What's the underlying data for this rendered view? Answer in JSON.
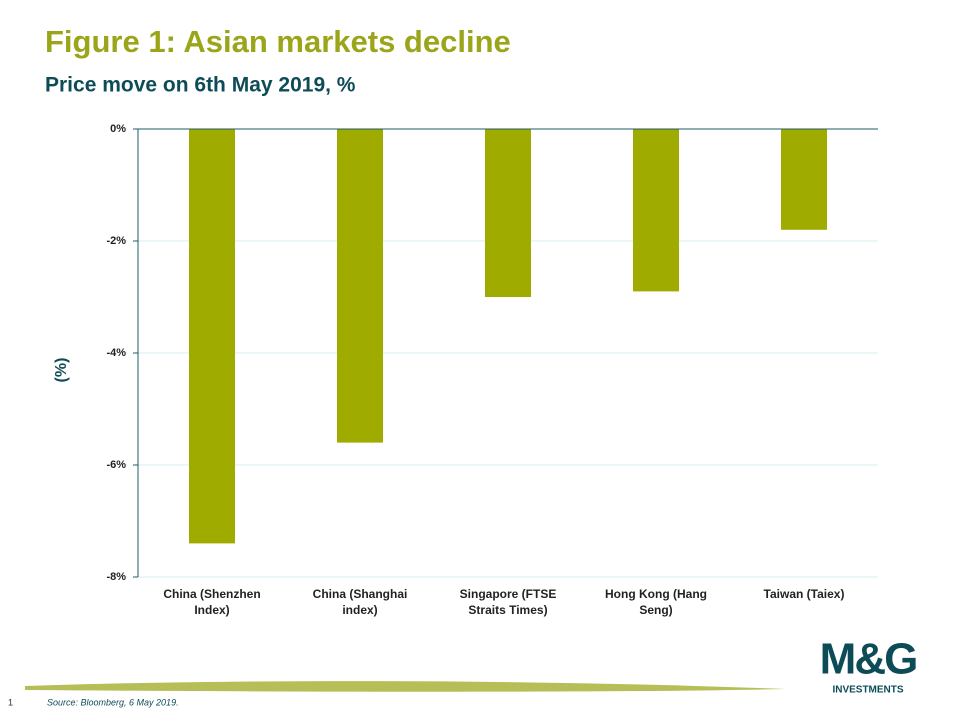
{
  "chart_data": {
    "type": "bar",
    "title": "Figure 1: Asian markets decline",
    "subtitle": "Price move on 6th May 2019, %",
    "y_label": "(%)",
    "categories": [
      "China (Shenzhen Index)",
      "China (Shanghai index)",
      "Singapore (FTSE Straits Times)",
      "Hong Kong (Hang Seng)",
      "Taiwan (Taiex)"
    ],
    "values": [
      -7.4,
      -5.6,
      -3.0,
      -2.9,
      -1.8
    ],
    "color": "#a0ab00",
    "ylim": [
      -8,
      0
    ],
    "yticks": [
      {
        "value": 0,
        "label": "0%"
      },
      {
        "value": -2,
        "label": "-2%"
      },
      {
        "value": -4,
        "label": "-4%"
      },
      {
        "value": -6,
        "label": "-6%"
      },
      {
        "value": -8,
        "label": "-8%"
      }
    ],
    "grid": true,
    "source": "Source: Bloomberg, 6 May 2019."
  },
  "page_number": "1",
  "logo": {
    "brand": "M&G",
    "tagline": "INVESTMENTS"
  }
}
